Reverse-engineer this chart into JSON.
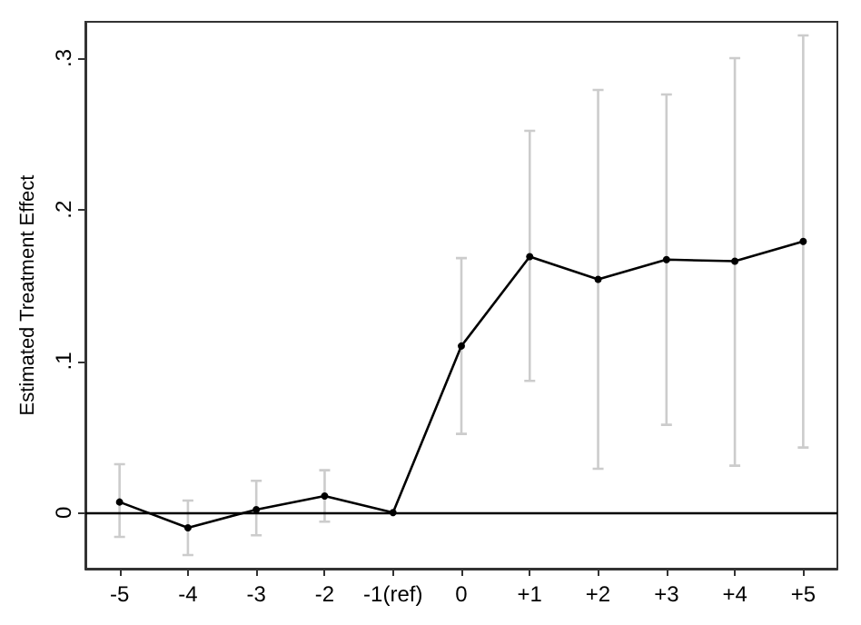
{
  "chart_data": {
    "type": "line",
    "ylabel": "Estimated Treatment Effect",
    "categories": [
      "-5",
      "-4",
      "-3",
      "-2",
      "-1(ref)",
      "0",
      "+1",
      "+2",
      "+3",
      "+4",
      "+5"
    ],
    "series": [
      {
        "color": "#000000",
        "values": [
          0.007,
          -0.01,
          0.002,
          0.011,
          0,
          0.11,
          0.169,
          0.154,
          0.167,
          0.166,
          0.179
        ],
        "errors": [
          [
            -0.016,
            0.032
          ],
          [
            -0.028,
            0.008
          ],
          [
            -0.015,
            0.021
          ],
          [
            -0.006,
            0.028
          ],
          null,
          [
            0.052,
            0.168
          ],
          [
            0.087,
            0.252
          ],
          [
            0.029,
            0.279
          ],
          [
            0.058,
            0.276
          ],
          [
            0.031,
            0.3
          ],
          [
            0.043,
            0.315
          ]
        ]
      }
    ],
    "ylim": [
      -0.037,
      0.324
    ],
    "yticks": [
      {
        "value": 0,
        "label": "0"
      },
      {
        "value": 0.1,
        "label": ".1"
      },
      {
        "value": 0.2,
        "label": ".2"
      },
      {
        "value": 0.3,
        "label": ".3"
      }
    ],
    "ref_lines": [
      {
        "axis": "y",
        "value": 0,
        "color": "#000000"
      }
    ],
    "marker": "circle",
    "line_style": "solid"
  }
}
